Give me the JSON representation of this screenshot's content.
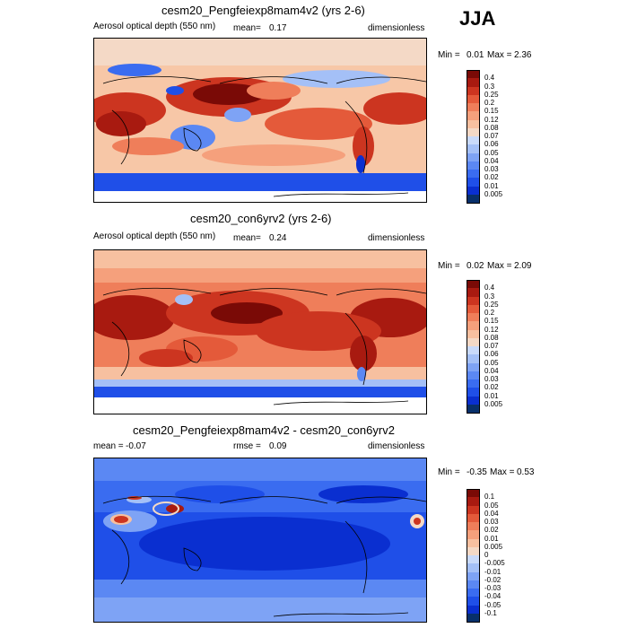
{
  "season": "JJA",
  "colors": {
    "scale1": [
      "#08306b",
      "#0a2fd0",
      "#1f4fe8",
      "#3a6cf0",
      "#5b88f3",
      "#7ea3f5",
      "#a4c0f7",
      "#c9dafa",
      "#f4d9c6",
      "#f7c0a0",
      "#f5a07c",
      "#ef7e5a",
      "#e45a3a",
      "#cc3520",
      "#a81a10",
      "#7a0a06"
    ],
    "scale2": [
      "#08306b",
      "#0a2fd0",
      "#1f4fe8",
      "#3a6cf0",
      "#5b88f3",
      "#7ea3f5",
      "#a4c0f7",
      "#c9dafa",
      "#f4d9c6",
      "#f7c0a0",
      "#f5a07c",
      "#ef7e5a",
      "#e45a3a",
      "#cc3520",
      "#a81a10",
      "#7a0a06"
    ]
  },
  "panels": [
    {
      "title": "cesm20_Pengfeiexp8mam4v2 (yrs 2-6)",
      "left_label": "Aerosol optical depth (550 nm)",
      "mean_label": "mean=",
      "mean_value": "0.17",
      "units": "dimensionless",
      "min_label": "Min =",
      "min_value": "0.01",
      "max_label": "Max =",
      "max_value": "2.36",
      "colorbar_labels": [
        "0.4",
        "0.3",
        "0.25",
        "0.2",
        "0.15",
        "0.12",
        "0.08",
        "0.07",
        "0.06",
        "0.05",
        "0.04",
        "0.03",
        "0.02",
        "0.01",
        "0.005"
      ]
    },
    {
      "title": "cesm20_con6yrv2 (yrs 2-6)",
      "left_label": "Aerosol optical depth (550 nm)",
      "mean_label": "mean=",
      "mean_value": "0.24",
      "units": "dimensionless",
      "min_label": "Min =",
      "min_value": "0.02",
      "max_label": "Max =",
      "max_value": "2.09",
      "colorbar_labels": [
        "0.4",
        "0.3",
        "0.25",
        "0.2",
        "0.15",
        "0.12",
        "0.08",
        "0.07",
        "0.06",
        "0.05",
        "0.04",
        "0.03",
        "0.02",
        "0.01",
        "0.005"
      ]
    },
    {
      "title": "cesm20_Pengfeiexp8mam4v2 - cesm20_con6yrv2",
      "left_label": "mean =",
      "mean_label": "rmse =",
      "mean_value": "0.09",
      "left_value": "-0.07",
      "units": "dimensionless",
      "min_label": "Min =",
      "min_value": "-0.35",
      "max_label": "Max =",
      "max_value": "0.53",
      "colorbar_labels": [
        "0.1",
        "0.05",
        "0.04",
        "0.03",
        "0.02",
        "0.01",
        "0.005",
        "0",
        "-0.005",
        "-0.01",
        "-0.02",
        "-0.03",
        "-0.04",
        "-0.05",
        "-0.1"
      ]
    }
  ],
  "chart_data": {
    "type": "heatmap",
    "title": "JJA",
    "panels": [
      {
        "title": "cesm20_Pengfeiexp8mam4v2 (yrs 2-6)",
        "variable": "Aerosol optical depth (550 nm)",
        "mean": 0.17,
        "min": 0.01,
        "max": 2.36,
        "units": "dimensionless",
        "levels": [
          0.005,
          0.01,
          0.02,
          0.03,
          0.04,
          0.05,
          0.06,
          0.07,
          0.08,
          0.12,
          0.15,
          0.2,
          0.25,
          0.3,
          0.4
        ]
      },
      {
        "title": "cesm20_con6yrv2 (yrs 2-6)",
        "variable": "Aerosol optical depth (550 nm)",
        "mean": 0.24,
        "min": 0.02,
        "max": 2.09,
        "units": "dimensionless",
        "levels": [
          0.005,
          0.01,
          0.02,
          0.03,
          0.04,
          0.05,
          0.06,
          0.07,
          0.08,
          0.12,
          0.15,
          0.2,
          0.25,
          0.3,
          0.4
        ]
      },
      {
        "title": "cesm20_Pengfeiexp8mam4v2 - cesm20_con6yrv2",
        "mean": -0.07,
        "rmse": 0.09,
        "min": -0.35,
        "max": 0.53,
        "units": "dimensionless",
        "levels": [
          -0.1,
          -0.05,
          -0.04,
          -0.03,
          -0.02,
          -0.01,
          -0.005,
          0,
          0.005,
          0.01,
          0.02,
          0.03,
          0.04,
          0.05,
          0.1
        ]
      }
    ]
  }
}
